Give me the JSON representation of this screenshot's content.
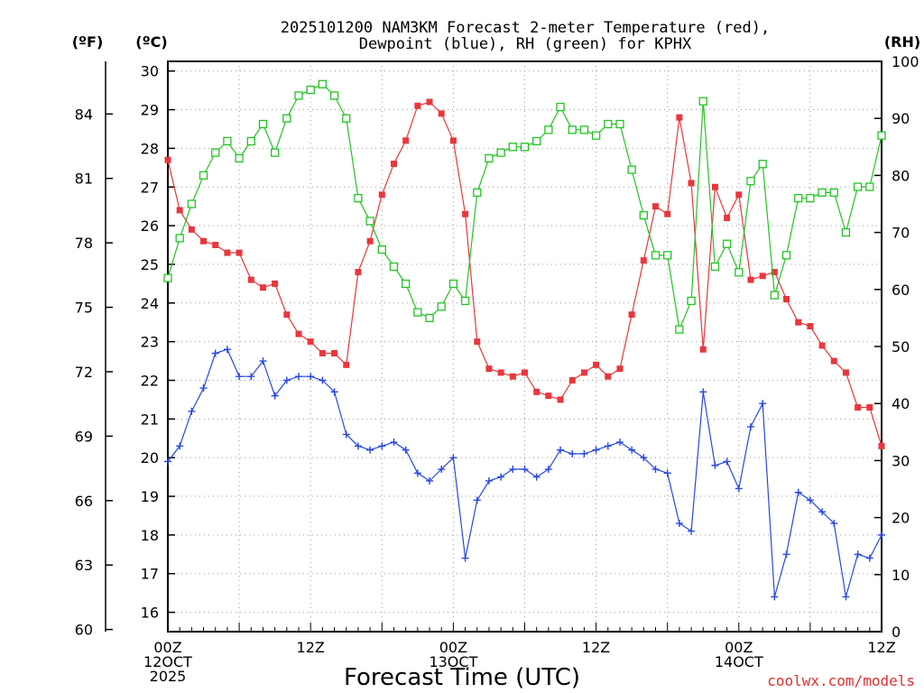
{
  "chart_data": {
    "type": "line",
    "title_line1": "2025101200 NAM3KM Forecast 2-meter Temperature (red),",
    "title_line2": "Dewpoint (blue), RH (green) for KPHX",
    "units": {
      "fahrenheit": "(ºF)",
      "celsius": "(ºC)",
      "rh": "(RH)"
    },
    "xlabel": "Forecast Time (UTC)",
    "credit": "coolwx.com/models",
    "x_hours_range": [
      0,
      60
    ],
    "celsius_range": [
      15.5,
      30.25
    ],
    "rh_range": [
      0,
      100
    ],
    "f_ticks": [
      {
        "v": 60,
        "l": "60"
      },
      {
        "v": 63,
        "l": "63"
      },
      {
        "v": 66,
        "l": "66"
      },
      {
        "v": 69,
        "l": "69"
      },
      {
        "v": 72,
        "l": "72"
      },
      {
        "v": 75,
        "l": "75"
      },
      {
        "v": 78,
        "l": "78"
      },
      {
        "v": 81,
        "l": "81"
      },
      {
        "v": 84,
        "l": "84"
      }
    ],
    "c_ticks": [
      {
        "v": 16,
        "l": "16"
      },
      {
        "v": 17,
        "l": "17"
      },
      {
        "v": 18,
        "l": "18"
      },
      {
        "v": 19,
        "l": "19"
      },
      {
        "v": 20,
        "l": "20"
      },
      {
        "v": 21,
        "l": "21"
      },
      {
        "v": 22,
        "l": "22"
      },
      {
        "v": 23,
        "l": "23"
      },
      {
        "v": 24,
        "l": "24"
      },
      {
        "v": 25,
        "l": "25"
      },
      {
        "v": 26,
        "l": "26"
      },
      {
        "v": 27,
        "l": "27"
      },
      {
        "v": 28,
        "l": "28"
      },
      {
        "v": 29,
        "l": "29"
      },
      {
        "v": 30,
        "l": "30"
      }
    ],
    "rh_ticks": [
      {
        "v": 0,
        "l": "0"
      },
      {
        "v": 10,
        "l": "10"
      },
      {
        "v": 20,
        "l": "20"
      },
      {
        "v": 30,
        "l": "30"
      },
      {
        "v": 40,
        "l": "40"
      },
      {
        "v": 50,
        "l": "50"
      },
      {
        "v": 60,
        "l": "60"
      },
      {
        "v": 70,
        "l": "70"
      },
      {
        "v": 80,
        "l": "80"
      },
      {
        "v": 90,
        "l": "90"
      },
      {
        "v": 100,
        "l": "100"
      }
    ],
    "x_ticks": [
      {
        "h": 0,
        "lines": [
          "00Z",
          "12OCT",
          "2025"
        ]
      },
      {
        "h": 12,
        "lines": [
          "12Z"
        ]
      },
      {
        "h": 24,
        "lines": [
          "00Z",
          "13OCT"
        ]
      },
      {
        "h": 36,
        "lines": [
          "12Z"
        ]
      },
      {
        "h": 48,
        "lines": [
          "00Z",
          "14OCT"
        ]
      },
      {
        "h": 60,
        "lines": [
          "12Z"
        ]
      }
    ],
    "series": [
      {
        "name": "2-meter Temperature",
        "color": "#e8373c",
        "axis": "celsius",
        "marker": "filled-square",
        "values": [
          27.7,
          26.4,
          25.9,
          25.6,
          25.5,
          25.3,
          25.3,
          24.6,
          24.4,
          24.5,
          23.7,
          23.2,
          23.0,
          22.7,
          22.7,
          22.4,
          24.8,
          25.6,
          26.8,
          27.6,
          28.2,
          29.1,
          29.2,
          28.9,
          28.2,
          26.3,
          23.0,
          22.3,
          22.2,
          22.1,
          22.2,
          21.7,
          21.6,
          21.5,
          22.0,
          22.2,
          22.4,
          22.1,
          22.3,
          23.7,
          25.1,
          26.5,
          26.3,
          28.8,
          27.1,
          22.8,
          27.0,
          26.2,
          26.8,
          24.6,
          24.7,
          24.8,
          24.1,
          23.5,
          23.4,
          22.9,
          22.5,
          22.2,
          21.3,
          21.3,
          20.3
        ]
      },
      {
        "name": "Dewpoint",
        "color": "#2747e0",
        "axis": "celsius",
        "marker": "plus",
        "values": [
          19.9,
          20.3,
          21.2,
          21.8,
          22.7,
          22.8,
          22.1,
          22.1,
          22.5,
          21.6,
          22.0,
          22.1,
          22.1,
          22.0,
          21.7,
          20.6,
          20.3,
          20.2,
          20.3,
          20.4,
          20.2,
          19.6,
          19.4,
          19.7,
          20.0,
          17.4,
          18.9,
          19.4,
          19.5,
          19.7,
          19.7,
          19.5,
          19.7,
          20.2,
          20.1,
          20.1,
          20.2,
          20.3,
          20.4,
          20.2,
          20.0,
          19.7,
          19.6,
          18.3,
          18.1,
          21.7,
          19.8,
          19.9,
          19.2,
          20.8,
          21.4,
          16.4,
          17.5,
          19.1,
          18.9,
          18.6,
          18.3,
          16.4,
          17.5,
          17.4,
          18.0
        ]
      },
      {
        "name": "RH",
        "color": "#22c422",
        "axis": "rh",
        "marker": "open-square",
        "values": [
          62,
          69,
          75,
          80,
          84,
          86,
          83,
          86,
          89,
          84,
          90,
          94,
          95,
          96,
          94,
          90,
          76,
          72,
          67,
          64,
          61,
          56,
          55,
          57,
          61,
          58,
          77,
          83,
          84,
          85,
          85,
          86,
          88,
          92,
          88,
          88,
          87,
          89,
          89,
          81,
          73,
          66,
          66,
          53,
          58,
          93,
          64,
          68,
          63,
          79,
          82,
          59,
          66,
          76,
          76,
          77,
          77,
          70,
          78,
          78,
          87
        ]
      }
    ]
  }
}
